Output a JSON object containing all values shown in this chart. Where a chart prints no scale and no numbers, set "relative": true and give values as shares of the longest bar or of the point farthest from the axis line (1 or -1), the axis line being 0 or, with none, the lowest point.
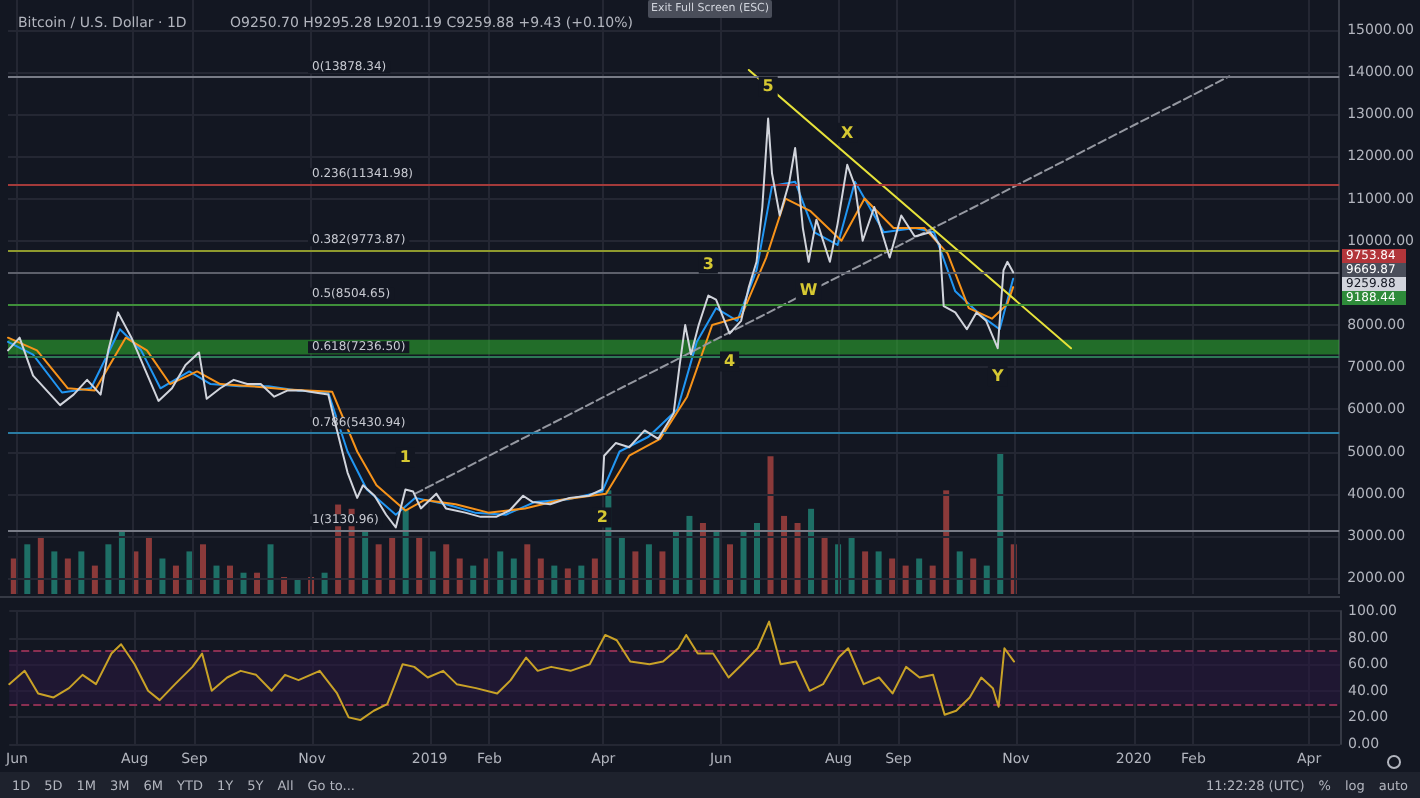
{
  "chart_data": [
    {
      "type": "line",
      "title": "Bitcoin / U.S. Dollar · 1D",
      "subtitle": "O9250.70 H9295.28 L9201.19 C9259.88 +9.43 (+0.10%)",
      "xlim": [
        "2018-05-28",
        "2020-04-17"
      ],
      "ylim": [
        1620,
        15710
      ],
      "xticks": [
        {
          "value": "2018-06-01",
          "label": null
        },
        {
          "value": "2018-08-01",
          "label": null
        },
        {
          "value": "2018-09-01",
          "label": null
        },
        {
          "value": "2018-11-01",
          "label": null
        },
        {
          "value": "2019-01-01",
          "label": null
        },
        {
          "value": "2019-02-01",
          "label": null
        },
        {
          "value": "2019-04-01",
          "label": null
        },
        {
          "value": "2019-06-01",
          "label": null
        },
        {
          "value": "2019-08-01",
          "label": null
        },
        {
          "value": "2019-09-01",
          "label": null
        },
        {
          "value": "2019-11-01",
          "label": null
        },
        {
          "value": "2020-01-01",
          "label": null
        },
        {
          "value": "2020-02-01",
          "label": null
        },
        {
          "value": "2020-04-01",
          "label": null
        }
      ],
      "yticks": [
        {
          "value": 2000,
          "label": "2000.00"
        },
        {
          "value": 3000,
          "label": "3000.00"
        },
        {
          "value": 4000,
          "label": "4000.00"
        },
        {
          "value": 5000,
          "label": "5000.00"
        },
        {
          "value": 6000,
          "label": "6000.00"
        },
        {
          "value": 7000,
          "label": "7000.00"
        },
        {
          "value": 8000,
          "label": "8000.00"
        },
        {
          "value": 10000,
          "label": "10000.00"
        },
        {
          "value": 11000,
          "label": "11000.00"
        },
        {
          "value": 12000,
          "label": "12000.00"
        },
        {
          "value": 13000,
          "label": "13000.00"
        },
        {
          "value": 14000,
          "label": "14000.00"
        },
        {
          "value": 15000,
          "label": "15000.00"
        }
      ],
      "grid": true,
      "tick_labels": "y",
      "series": [
        {
          "color": "#d1d4dc",
          "x": [
            "2018-05-28",
            "2018-06-03",
            "2018-06-10",
            "2018-06-17",
            "2018-06-24",
            "2018-07-01",
            "2018-07-08",
            "2018-07-15",
            "2018-07-19",
            "2018-07-24",
            "2018-07-31",
            "2018-08-07",
            "2018-08-14",
            "2018-08-21",
            "2018-08-28",
            "2018-09-04",
            "2018-09-08",
            "2018-09-15",
            "2018-09-22",
            "2018-09-29",
            "2018-10-06",
            "2018-10-13",
            "2018-10-20",
            "2018-10-27",
            "2018-11-03",
            "2018-11-10",
            "2018-11-14",
            "2018-11-20",
            "2018-11-25",
            "2018-11-28",
            "2018-12-04",
            "2018-12-10",
            "2018-12-15",
            "2018-12-20",
            "2018-12-24",
            "2018-12-28",
            "2019-01-05",
            "2019-01-10",
            "2019-01-20",
            "2019-01-28",
            "2019-02-05",
            "2019-02-12",
            "2019-02-19",
            "2019-02-24",
            "2019-03-05",
            "2019-03-15",
            "2019-03-25",
            "2019-04-01",
            "2019-04-02",
            "2019-04-08",
            "2019-04-15",
            "2019-04-23",
            "2019-04-30",
            "2019-05-08",
            "2019-05-11",
            "2019-05-14",
            "2019-05-17",
            "2019-05-21",
            "2019-05-26",
            "2019-05-30",
            "2019-06-06",
            "2019-06-12",
            "2019-06-16",
            "2019-06-20",
            "2019-06-23",
            "2019-06-26",
            "2019-06-28",
            "2019-07-02",
            "2019-07-07",
            "2019-07-10",
            "2019-07-14",
            "2019-07-17",
            "2019-07-21",
            "2019-07-28",
            "2019-08-01",
            "2019-08-06",
            "2019-08-10",
            "2019-08-14",
            "2019-08-20",
            "2019-08-28",
            "2019-09-03",
            "2019-09-10",
            "2019-09-18",
            "2019-09-23",
            "2019-09-25",
            "2019-10-01",
            "2019-10-07",
            "2019-10-12",
            "2019-10-17",
            "2019-10-23",
            "2019-10-25",
            "2019-10-26",
            "2019-10-28",
            "2019-10-31"
          ],
          "values": [
            7400,
            7700,
            6800,
            6450,
            6100,
            6350,
            6700,
            6350,
            7400,
            8300,
            7700,
            6950,
            6200,
            6500,
            7050,
            7350,
            6250,
            6500,
            6700,
            6600,
            6600,
            6300,
            6450,
            6450,
            6400,
            6350,
            5600,
            4500,
            3900,
            4200,
            3950,
            3500,
            3200,
            4100,
            4050,
            3650,
            4000,
            3650,
            3550,
            3450,
            3450,
            3600,
            3950,
            3800,
            3750,
            3900,
            3950,
            4100,
            4900,
            5200,
            5100,
            5500,
            5300,
            5900,
            7000,
            8000,
            7300,
            8000,
            8700,
            8600,
            7800,
            8100,
            8900,
            9500,
            10800,
            12900,
            11600,
            10600,
            11400,
            12200,
            10300,
            9500,
            10500,
            9500,
            10400,
            11800,
            11300,
            10000,
            10800,
            9600,
            10600,
            10100,
            10200,
            9900,
            8450,
            8300,
            7900,
            8300,
            8100,
            7450,
            8700,
            9300,
            9500,
            9250
          ]
        },
        {
          "color": "#2196f3",
          "x": [
            "2018-05-28",
            "2018-06-10",
            "2018-06-25",
            "2018-07-10",
            "2018-07-25",
            "2018-08-05",
            "2018-08-15",
            "2018-08-30",
            "2018-09-10",
            "2018-09-25",
            "2018-10-10",
            "2018-10-25",
            "2018-11-10",
            "2018-11-20",
            "2018-11-30",
            "2018-12-15",
            "2018-12-25",
            "2019-01-10",
            "2019-01-25",
            "2019-02-10",
            "2019-02-25",
            "2019-03-15",
            "2019-04-01",
            "2019-04-10",
            "2019-04-25",
            "2019-05-10",
            "2019-05-20",
            "2019-05-30",
            "2019-06-10",
            "2019-06-20",
            "2019-06-28",
            "2019-07-10",
            "2019-07-20",
            "2019-08-01",
            "2019-08-10",
            "2019-08-25",
            "2019-09-10",
            "2019-09-20",
            "2019-10-01",
            "2019-10-15",
            "2019-10-24",
            "2019-10-31"
          ],
          "values": [
            7600,
            7300,
            6400,
            6500,
            7900,
            7400,
            6500,
            6900,
            6600,
            6550,
            6550,
            6450,
            6400,
            5000,
            4100,
            3500,
            3900,
            3750,
            3550,
            3500,
            3800,
            3870,
            4050,
            5000,
            5350,
            6000,
            7600,
            8400,
            8100,
            9300,
            11300,
            11400,
            10200,
            9900,
            11400,
            10200,
            10300,
            10200,
            8800,
            8200,
            7900,
            9100
          ]
        },
        {
          "color": "#f7931a",
          "x": [
            "2018-05-28",
            "2018-06-12",
            "2018-06-28",
            "2018-07-12",
            "2018-07-28",
            "2018-08-08",
            "2018-08-20",
            "2018-09-03",
            "2018-09-15",
            "2018-10-01",
            "2018-10-20",
            "2018-11-12",
            "2018-11-25",
            "2018-12-05",
            "2018-12-20",
            "2018-12-30",
            "2019-01-15",
            "2019-02-01",
            "2019-02-20",
            "2019-03-10",
            "2019-04-03",
            "2019-04-15",
            "2019-05-01",
            "2019-05-15",
            "2019-05-28",
            "2019-06-12",
            "2019-06-25",
            "2019-07-05",
            "2019-07-18",
            "2019-08-03",
            "2019-08-15",
            "2019-08-30",
            "2019-09-15",
            "2019-09-27",
            "2019-10-08",
            "2019-10-20",
            "2019-10-28",
            "2019-10-31"
          ],
          "values": [
            7700,
            7400,
            6500,
            6450,
            7700,
            7400,
            6600,
            6900,
            6600,
            6550,
            6470,
            6420,
            5000,
            4200,
            3600,
            3850,
            3750,
            3550,
            3650,
            3850,
            4000,
            4900,
            5300,
            6300,
            8000,
            8200,
            9600,
            11000,
            10700,
            10000,
            11000,
            10300,
            10300,
            9700,
            8400,
            8150,
            8500,
            8900
          ]
        },
        {
          "color": "#9598a1",
          "line_style": "dashed",
          "x": [
            "2018-12-25",
            "2020-02-20"
          ],
          "values": [
            4000,
            13900
          ]
        },
        {
          "color": "#e6e23a",
          "x": [
            "2019-06-16",
            "2019-11-30"
          ],
          "values": [
            14050,
            7450
          ]
        }
      ],
      "ref_lines": [
        {
          "axis": "y",
          "value": 13878.34,
          "label": "0(13878.34)",
          "color": "#787b86"
        },
        {
          "axis": "y",
          "value": 11341.98,
          "label": "0.236(11341.98)",
          "color": "#a33a3a"
        },
        {
          "axis": "y",
          "value": 9773.87,
          "label": "0.382(9773.87)",
          "color": "#8f9a2e"
        },
        {
          "axis": "y",
          "value": 8504.65,
          "label": "0.5(8504.65)",
          "color": "#3f8f3a"
        },
        {
          "axis": "y",
          "value": 7236.5,
          "label": "0.618(7236.50)",
          "color": "#2d7a55"
        },
        {
          "axis": "y",
          "value": 5430.94,
          "label": "0.786(5430.94)",
          "color": "#2a7ca3"
        },
        {
          "axis": "y",
          "value": 3130.96,
          "label": "1(3130.96)",
          "color": "#787b86"
        },
        {
          "axis": "y",
          "value": 9259.88,
          "color": "#5d606b"
        }
      ],
      "bands": [
        {
          "axis": "y",
          "from": 7300,
          "to": 7650,
          "color": "#2fb52f"
        }
      ],
      "annotations": [
        {
          "text": "1",
          "x": "2018-12-20",
          "y": 4100
        },
        {
          "text": "2",
          "x": "2019-04-01",
          "y": 4100
        },
        {
          "text": "3",
          "x": "2019-05-26",
          "y": 8700
        },
        {
          "text": "4",
          "x": "2019-06-06",
          "y": 7800
        },
        {
          "text": "5",
          "x": "2019-06-26",
          "y": 12900
        },
        {
          "text": "W",
          "x": "2019-07-17",
          "y": 9500
        },
        {
          "text": "X",
          "x": "2019-08-06",
          "y": 11800
        },
        {
          "text": "Y",
          "x": "2019-10-23",
          "y": 7450
        },
        "9753.84",
        "9669.87",
        "9259.88",
        "9188.44",
        "Exit Full Screen (ESC)"
      ]
    },
    {
      "type": "bar",
      "relative": true,
      "tick_labels": false,
      "xlim": [
        "2018-05-28",
        "2020-04-17"
      ],
      "x": [
        "2018-05-31",
        "2018-06-07",
        "2018-06-14",
        "2018-06-21",
        "2018-06-28",
        "2018-07-05",
        "2018-07-12",
        "2018-07-19",
        "2018-07-26",
        "2018-08-02",
        "2018-08-09",
        "2018-08-16",
        "2018-08-23",
        "2018-08-30",
        "2018-09-06",
        "2018-09-13",
        "2018-09-20",
        "2018-09-27",
        "2018-10-04",
        "2018-10-11",
        "2018-10-18",
        "2018-10-25",
        "2018-11-01",
        "2018-11-08",
        "2018-11-15",
        "2018-11-22",
        "2018-11-29",
        "2018-12-06",
        "2018-12-13",
        "2018-12-20",
        "2018-12-27",
        "2019-01-03",
        "2019-01-10",
        "2019-01-17",
        "2019-01-24",
        "2019-01-31",
        "2019-02-07",
        "2019-02-14",
        "2019-02-21",
        "2019-02-28",
        "2019-03-07",
        "2019-03-14",
        "2019-03-21",
        "2019-03-28",
        "2019-04-04",
        "2019-04-11",
        "2019-04-18",
        "2019-04-25",
        "2019-05-02",
        "2019-05-09",
        "2019-05-16",
        "2019-05-23",
        "2019-05-30",
        "2019-06-06",
        "2019-06-13",
        "2019-06-20",
        "2019-06-27",
        "2019-07-04",
        "2019-07-11",
        "2019-07-18",
        "2019-07-25",
        "2019-08-01",
        "2019-08-08",
        "2019-08-15",
        "2019-08-22",
        "2019-08-29",
        "2019-09-05",
        "2019-09-12",
        "2019-09-19",
        "2019-09-26",
        "2019-10-03",
        "2019-10-10",
        "2019-10-17",
        "2019-10-24",
        "2019-10-31"
      ],
      "values": [
        0.25,
        0.35,
        0.4,
        0.3,
        0.25,
        0.3,
        0.2,
        0.35,
        0.45,
        0.3,
        0.4,
        0.25,
        0.2,
        0.3,
        0.35,
        0.2,
        0.2,
        0.15,
        0.15,
        0.35,
        0.12,
        0.1,
        0.12,
        0.15,
        0.63,
        0.6,
        0.45,
        0.35,
        0.4,
        0.6,
        0.4,
        0.3,
        0.35,
        0.25,
        0.2,
        0.25,
        0.3,
        0.25,
        0.35,
        0.25,
        0.2,
        0.18,
        0.2,
        0.25,
        0.73,
        0.4,
        0.3,
        0.35,
        0.3,
        0.45,
        0.55,
        0.5,
        0.45,
        0.35,
        0.45,
        0.5,
        0.97,
        0.55,
        0.5,
        0.6,
        0.4,
        0.35,
        0.4,
        0.3,
        0.3,
        0.25,
        0.2,
        0.25,
        0.2,
        0.73,
        0.3,
        0.25,
        0.2,
        1,
        0.35
      ],
      "colors": [
        "#8b3a3a",
        "#1e6f66",
        "#8b3a3a",
        "#1e6f66",
        "#8b3a3a",
        "#1e6f66",
        "#8b3a3a",
        "#1e6f66",
        "#1e6f66",
        "#8b3a3a",
        "#8b3a3a",
        "#1e6f66",
        "#8b3a3a",
        "#1e6f66",
        "#8b3a3a",
        "#1e6f66",
        "#8b3a3a",
        "#1e6f66",
        "#8b3a3a",
        "#1e6f66",
        "#8b3a3a",
        "#1e6f66",
        "#8b3a3a",
        "#1e6f66",
        "#8b3a3a",
        "#8b3a3a",
        "#1e6f66",
        "#8b3a3a",
        "#8b3a3a",
        "#1e6f66",
        "#8b3a3a",
        "#1e6f66",
        "#8b3a3a",
        "#8b3a3a",
        "#1e6f66",
        "#8b3a3a",
        "#1e6f66",
        "#1e6f66",
        "#8b3a3a",
        "#8b3a3a",
        "#1e6f66",
        "#8b3a3a",
        "#1e6f66",
        "#8b3a3a",
        "#1e6f66",
        "#1e6f66",
        "#8b3a3a",
        "#1e6f66",
        "#8b3a3a",
        "#1e6f66",
        "#1e6f66",
        "#8b3a3a",
        "#1e6f66",
        "#8b3a3a",
        "#1e6f66",
        "#1e6f66",
        "#8b3a3a",
        "#8b3a3a",
        "#8b3a3a",
        "#1e6f66",
        "#8b3a3a",
        "#1e6f66",
        "#1e6f66",
        "#8b3a3a",
        "#1e6f66",
        "#8b3a3a",
        "#8b3a3a",
        "#1e6f66",
        "#8b3a3a",
        "#8b3a3a",
        "#1e6f66",
        "#8b3a3a",
        "#1e6f66",
        "#1e6f66",
        "#8b3a3a"
      ]
    },
    {
      "type": "line",
      "xlim": [
        "2018-05-28",
        "2020-04-17"
      ],
      "ylim": [
        0,
        100
      ],
      "grid": true,
      "xticks": [
        {
          "value": "2018-06-01",
          "label": "Jun"
        },
        {
          "value": "2018-08-01",
          "label": "Aug"
        },
        {
          "value": "2018-09-01",
          "label": "Sep"
        },
        {
          "value": "2018-11-01",
          "label": "Nov"
        },
        {
          "value": "2019-01-01",
          "label": "2019"
        },
        {
          "value": "2019-02-01",
          "label": "Feb"
        },
        {
          "value": "2019-04-01",
          "label": "Apr"
        },
        {
          "value": "2019-06-01",
          "label": "Jun"
        },
        {
          "value": "2019-08-01",
          "label": "Aug"
        },
        {
          "value": "2019-09-01",
          "label": "Sep"
        },
        {
          "value": "2019-11-01",
          "label": "Nov"
        },
        {
          "value": "2020-01-01",
          "label": "2020"
        },
        {
          "value": "2020-02-01",
          "label": "Feb"
        },
        {
          "value": "2020-04-01",
          "label": "Apr"
        }
      ],
      "yticks": [
        {
          "value": 0,
          "label": "0.00"
        },
        {
          "value": 20,
          "label": "20.00"
        },
        {
          "value": 40,
          "label": "40.00"
        },
        {
          "value": 60,
          "label": "60.00"
        },
        {
          "value": 80,
          "label": "80.00"
        },
        {
          "value": 100,
          "label": "100.00"
        }
      ],
      "series": [
        {
          "color": "#c9a227",
          "x": [
            "2018-05-28",
            "2018-06-05",
            "2018-06-12",
            "2018-06-20",
            "2018-06-28",
            "2018-07-05",
            "2018-07-12",
            "2018-07-20",
            "2018-07-25",
            "2018-08-01",
            "2018-08-08",
            "2018-08-14",
            "2018-08-22",
            "2018-08-31",
            "2018-09-05",
            "2018-09-10",
            "2018-09-18",
            "2018-09-25",
            "2018-10-03",
            "2018-10-11",
            "2018-10-18",
            "2018-10-25",
            "2018-11-05",
            "2018-11-14",
            "2018-11-20",
            "2018-11-26",
            "2018-12-03",
            "2018-12-10",
            "2018-12-18",
            "2018-12-24",
            "2018-12-31",
            "2019-01-08",
            "2019-01-15",
            "2019-01-25",
            "2019-02-05",
            "2019-02-12",
            "2019-02-20",
            "2019-02-26",
            "2019-03-05",
            "2019-03-15",
            "2019-03-25",
            "2019-04-02",
            "2019-04-08",
            "2019-04-15",
            "2019-04-25",
            "2019-05-02",
            "2019-05-10",
            "2019-05-14",
            "2019-05-20",
            "2019-05-28",
            "2019-06-05",
            "2019-06-12",
            "2019-06-20",
            "2019-06-26",
            "2019-07-02",
            "2019-07-10",
            "2019-07-17",
            "2019-07-24",
            "2019-08-01",
            "2019-08-06",
            "2019-08-14",
            "2019-08-22",
            "2019-08-29",
            "2019-09-05",
            "2019-09-12",
            "2019-09-19",
            "2019-09-25",
            "2019-10-01",
            "2019-10-08",
            "2019-10-14",
            "2019-10-20",
            "2019-10-23",
            "2019-10-26",
            "2019-10-31"
          ],
          "values": [
            45,
            55,
            38,
            35,
            42,
            52,
            45,
            68,
            75,
            60,
            40,
            33,
            45,
            58,
            68,
            40,
            50,
            55,
            52,
            40,
            52,
            48,
            55,
            38,
            20,
            18,
            25,
            30,
            60,
            58,
            50,
            55,
            45,
            42,
            38,
            48,
            65,
            55,
            58,
            55,
            60,
            82,
            78,
            62,
            60,
            62,
            72,
            82,
            68,
            68,
            50,
            60,
            72,
            92,
            60,
            62,
            40,
            45,
            65,
            72,
            45,
            50,
            38,
            58,
            50,
            52,
            22,
            25,
            35,
            50,
            42,
            28,
            72,
            62
          ]
        }
      ],
      "ref_lines": [
        {
          "axis": "y",
          "value": 70,
          "color": "#8a2f52",
          "line_style": "dashed"
        },
        {
          "axis": "y",
          "value": 30,
          "color": "#8a2f52",
          "line_style": "dashed"
        }
      ],
      "bands": [
        {
          "axis": "y",
          "from": 30,
          "to": 70,
          "color": "#2a1740"
        }
      ]
    },
    {
      "type": "other",
      "annotations": [
        "1D",
        "5D",
        "1M",
        "3M",
        "6M",
        "YTD",
        "1Y",
        "5Y",
        "All",
        "Go to...",
        "11:22:28 (UTC)",
        "%",
        "log",
        "auto"
      ]
    }
  ]
}
